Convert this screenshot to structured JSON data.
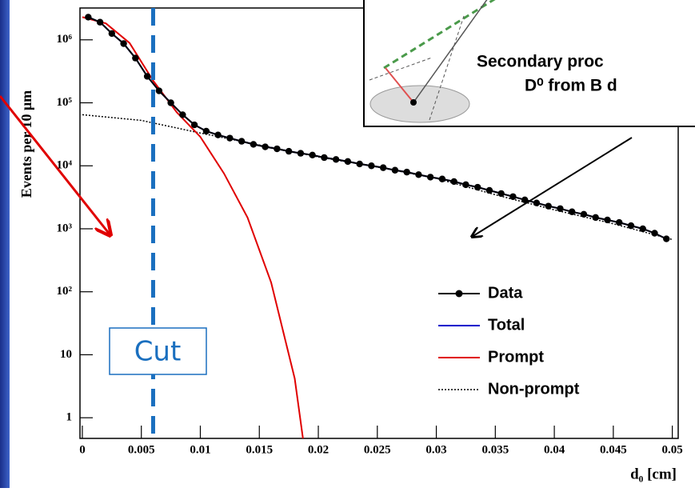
{
  "chart_data": {
    "type": "line",
    "log_y": true,
    "y_label": "Events per 10 μm",
    "x_label": "d₀ [cm]",
    "xlim": [
      -0.0002,
      0.0505
    ],
    "ylim": [
      0.47,
      3200000
    ],
    "xticks": [
      0,
      0.005,
      0.01,
      0.015,
      0.02,
      0.025,
      0.03,
      0.035,
      0.04,
      0.045,
      0.05
    ],
    "yticks": [
      1,
      10,
      {
        "value": 100,
        "label": "10²"
      },
      {
        "value": 1000,
        "label": "10³"
      },
      {
        "value": 10000,
        "label": "10⁴"
      },
      {
        "value": 100000,
        "label": "10⁵"
      },
      {
        "value": 1000000,
        "label": "10⁶"
      }
    ],
    "legend": "bottom-right",
    "cut": {
      "x": 0.006,
      "label": "Cut",
      "color": "#1a6fbf"
    },
    "inset_text": [
      "Secondary proc",
      "D⁰ from B d"
    ],
    "series": [
      {
        "name": "Data",
        "color": "#000000",
        "marker": true,
        "x": [
          0.0005,
          0.0015,
          0.0025,
          0.0035,
          0.0045,
          0.0055,
          0.0065,
          0.0075,
          0.0085,
          0.0095,
          0.0105,
          0.0115,
          0.0125,
          0.0135,
          0.0145,
          0.0155,
          0.0165,
          0.0175,
          0.0185,
          0.0195,
          0.0205,
          0.0215,
          0.0225,
          0.0235,
          0.0245,
          0.0255,
          0.0265,
          0.0275,
          0.0285,
          0.0295,
          0.0305,
          0.0315,
          0.0325,
          0.0335,
          0.0345,
          0.0355,
          0.0365,
          0.0375,
          0.0385,
          0.0395,
          0.0405,
          0.0415,
          0.0425,
          0.0435,
          0.0445,
          0.0455,
          0.0465,
          0.0475,
          0.0485,
          0.0495
        ],
        "values": [
          2290000,
          1905000,
          1259000,
          871000,
          513000,
          263000,
          155000,
          100000,
          64600,
          44700,
          35500,
          30900,
          27500,
          24500,
          21900,
          20000,
          18600,
          17000,
          15800,
          14800,
          13500,
          12600,
          11700,
          10700,
          10000,
          9330,
          8510,
          7940,
          7240,
          6610,
          6170,
          5620,
          5010,
          4570,
          4070,
          3630,
          3240,
          2880,
          2570,
          2290,
          2090,
          1860,
          1700,
          1510,
          1380,
          1260,
          1120,
          1000,
          851,
          692
        ]
      },
      {
        "name": "Total",
        "color": "#0000cc",
        "marker": false,
        "x": [
          0.0005,
          0.0015,
          0.0025,
          0.0035,
          0.0045,
          0.0055,
          0.0065,
          0.0075,
          0.0085,
          0.0095,
          0.0105,
          0.0115,
          0.0125,
          0.0135,
          0.0145,
          0.0155,
          0.0165,
          0.0175,
          0.0185,
          0.0195,
          0.0205,
          0.0215,
          0.0225,
          0.0235,
          0.0245,
          0.0255,
          0.0265,
          0.0275,
          0.0285,
          0.0295,
          0.0305,
          0.0315,
          0.0325,
          0.0335,
          0.0345,
          0.0355,
          0.0365,
          0.0375,
          0.0385,
          0.0395,
          0.0405,
          0.0415,
          0.0425,
          0.0435,
          0.0445,
          0.0455,
          0.0465,
          0.0475,
          0.0485,
          0.0495
        ],
        "values": [
          2290000,
          1905000,
          1259000,
          871000,
          513000,
          263000,
          155000,
          100000,
          64600,
          44700,
          35500,
          30900,
          27500,
          24500,
          21900,
          20000,
          18600,
          17000,
          15800,
          14800,
          13500,
          12600,
          11700,
          10700,
          10000,
          9330,
          8510,
          7940,
          7240,
          6610,
          6170,
          5620,
          5010,
          4570,
          4070,
          3630,
          3240,
          2880,
          2570,
          2290,
          2090,
          1860,
          1700,
          1510,
          1380,
          1260,
          1120,
          1000,
          851,
          692
        ]
      },
      {
        "name": "Prompt",
        "color": "#e00000",
        "marker": false,
        "x": [
          0,
          0.002,
          0.004,
          0.006,
          0.008,
          0.01,
          0.012,
          0.014,
          0.016,
          0.018,
          0.0187
        ],
        "values": [
          2290000,
          1820000,
          891000,
          224000,
          70800,
          28800,
          7590,
          1510,
          141,
          4.2,
          0.47
        ]
      },
      {
        "name": "Non-prompt",
        "color": "#000000",
        "marker": false,
        "dash": true,
        "x": [
          0,
          0.005,
          0.01,
          0.015,
          0.02,
          0.025,
          0.03,
          0.035,
          0.04,
          0.045,
          0.05
        ],
        "values": [
          64600,
          52500,
          33100,
          21400,
          13800,
          9550,
          6310,
          3470,
          2000,
          1200,
          676
        ]
      }
    ]
  }
}
